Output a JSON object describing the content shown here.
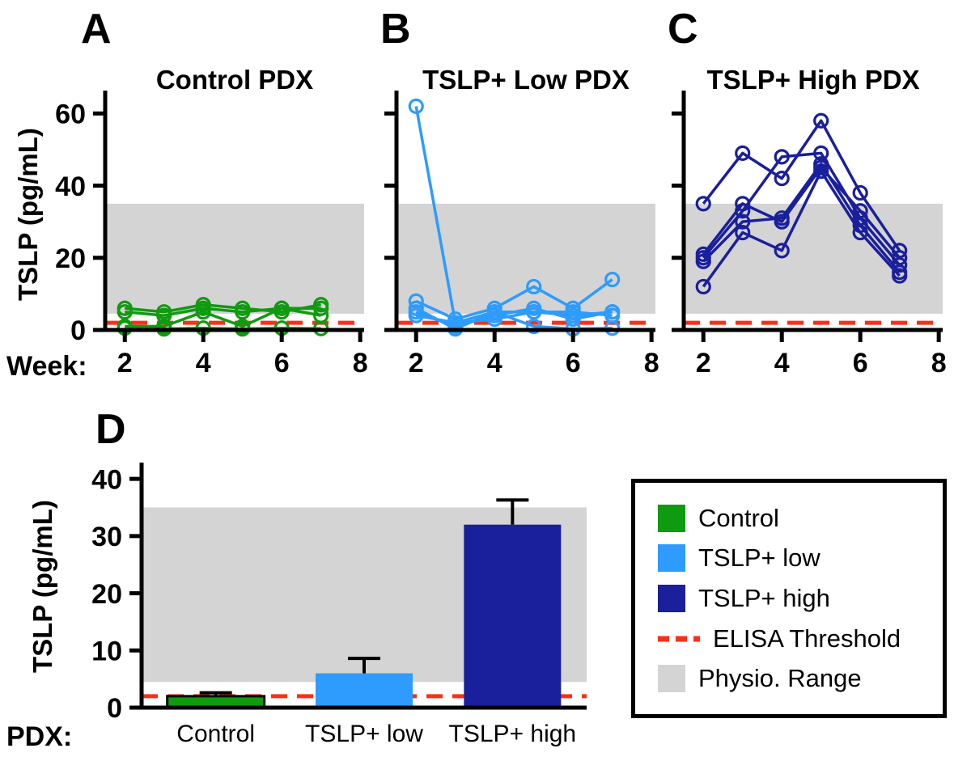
{
  "colors": {
    "green": "#0f9b0f",
    "light_blue": "#2e9bff",
    "dark_blue": "#1a1f9c",
    "red": "#f93016",
    "gray_band": "#d4d4d4",
    "axis": "#000000"
  },
  "panels": {
    "a": {
      "letter": "A"
    },
    "b": {
      "letter": "B"
    },
    "c": {
      "letter": "C"
    },
    "d": {
      "letter": "D"
    }
  },
  "legend": {
    "items": [
      {
        "label": "Control",
        "swatch": "green"
      },
      {
        "label": "TSLP+ low",
        "swatch": "light_blue"
      },
      {
        "label": "TSLP+ high",
        "swatch": "dark_blue"
      },
      {
        "label": "ELISA Threshold",
        "swatch": "red_dash"
      },
      {
        "label": "Physio. Range",
        "swatch": "gray_band"
      }
    ]
  },
  "chart_data": [
    {
      "id": "panel-a",
      "type": "line",
      "title": "Control PDX",
      "color_key": "green",
      "ylabel": "TSLP (pg/mL)",
      "x_caption": "Week:",
      "x": [
        2,
        3,
        4,
        5,
        6,
        7
      ],
      "series": [
        [
          6,
          5,
          7,
          6,
          5,
          7
        ],
        [
          5,
          4,
          6,
          5,
          6,
          4
        ],
        [
          1,
          1,
          5,
          1,
          6,
          6
        ],
        [
          0.5,
          0.3,
          0.5,
          0.3,
          0.5,
          0.4
        ]
      ],
      "xlim": [
        1.5,
        8.1
      ],
      "xticks": [
        2,
        4,
        6,
        8
      ],
      "ylim": [
        0,
        65
      ],
      "yticks": [
        0,
        20,
        40,
        60
      ],
      "show_ytick_labels": true,
      "physio_range": [
        4.5,
        35
      ],
      "elisa_threshold": 2
    },
    {
      "id": "panel-b",
      "type": "line",
      "title": "TSLP+ Low PDX",
      "color_key": "light_blue",
      "ylabel": "TSLP (pg/mL)",
      "x_caption": "Week:",
      "x": [
        2,
        3,
        4,
        5,
        6,
        7
      ],
      "series": [
        [
          62,
          2,
          5,
          5,
          4,
          5
        ],
        [
          8,
          3,
          6,
          12,
          6,
          14
        ],
        [
          5,
          1,
          4,
          6,
          3,
          5
        ],
        [
          6,
          0.3,
          5,
          1,
          0.3,
          0.5
        ],
        [
          4,
          2,
          3,
          5,
          5,
          4
        ]
      ],
      "xlim": [
        1.5,
        8.1
      ],
      "xticks": [
        2,
        4,
        6,
        8
      ],
      "ylim": [
        0,
        65
      ],
      "yticks": [
        0,
        20,
        40,
        60
      ],
      "show_ytick_labels": false,
      "physio_range": [
        4.5,
        35
      ],
      "elisa_threshold": 2
    },
    {
      "id": "panel-c",
      "type": "line",
      "title": "TSLP+ High PDX",
      "color_key": "dark_blue",
      "ylabel": "TSLP (pg/mL)",
      "x_caption": "Week:",
      "x": [
        2,
        3,
        4,
        5,
        6,
        7
      ],
      "series": [
        [
          35,
          49,
          42,
          58,
          38,
          22
        ],
        [
          20,
          33,
          48,
          49,
          31,
          18
        ],
        [
          19,
          30,
          31,
          46,
          29,
          16
        ],
        [
          12,
          27,
          22,
          44,
          27,
          15
        ],
        [
          21,
          35,
          30,
          45,
          33,
          20
        ]
      ],
      "xlim": [
        1.5,
        8.1
      ],
      "xticks": [
        2,
        4,
        6,
        8
      ],
      "ylim": [
        0,
        65
      ],
      "yticks": [
        0,
        20,
        40,
        60
      ],
      "show_ytick_labels": false,
      "physio_range": [
        4.5,
        35
      ],
      "elisa_threshold": 2
    },
    {
      "id": "panel-d",
      "type": "bar",
      "ylabel": "TSLP (pg/mL)",
      "x_caption": "PDX:",
      "categories": [
        "Control",
        "TSLP+ low",
        "TSLP+ high"
      ],
      "values": [
        2,
        6,
        32
      ],
      "errors": [
        0.6,
        2.6,
        4.3
      ],
      "color_keys": [
        "green",
        "light_blue",
        "dark_blue"
      ],
      "bar_edge_widths": [
        3,
        0,
        0
      ],
      "ylim": [
        0,
        42
      ],
      "yticks": [
        0,
        10,
        20,
        30,
        40
      ],
      "show_ytick_labels": true,
      "physio_range": [
        4.5,
        35
      ],
      "elisa_threshold": 2
    }
  ]
}
